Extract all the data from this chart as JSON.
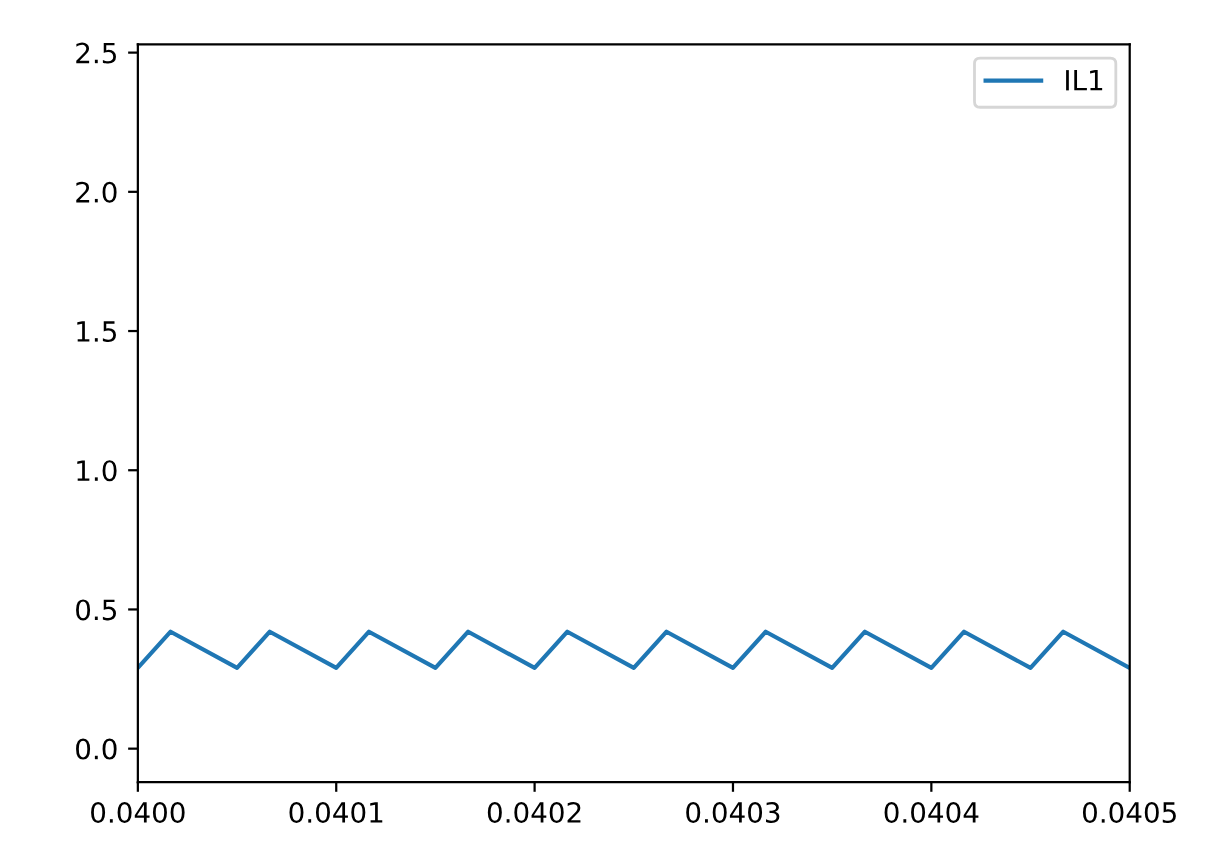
{
  "chart_data": {
    "type": "line",
    "legend": "top right",
    "grid": false,
    "xlim": [
      0.04,
      0.0405
    ],
    "ylim": [
      -0.12,
      2.53
    ],
    "xticks": [
      {
        "value": 0.04,
        "label": "0.0400"
      },
      {
        "value": 0.0401,
        "label": "0.0401"
      },
      {
        "value": 0.0402,
        "label": "0.0402"
      },
      {
        "value": 0.0403,
        "label": "0.0403"
      },
      {
        "value": 0.0404,
        "label": "0.0404"
      },
      {
        "value": 0.0405,
        "label": "0.0405"
      }
    ],
    "yticks": [
      {
        "value": 0,
        "label": "0.0"
      },
      0.5,
      {
        "value": 1,
        "label": "1.0"
      },
      1.5,
      {
        "value": 2,
        "label": "2.0"
      },
      2.5
    ],
    "series": [
      {
        "name": "IL1",
        "color": "#1f77b4",
        "x": [
          0.04,
          0.0400165,
          0.04005,
          0.0400665,
          0.0401,
          0.0401165,
          0.04015,
          0.0401665,
          0.0402,
          0.0402165,
          0.04025,
          0.0402665,
          0.0403,
          0.0403165,
          0.04035,
          0.0403665,
          0.0404,
          0.0404165,
          0.04045,
          0.0404665,
          0.0405
        ],
        "values": [
          0.29,
          0.42,
          0.29,
          0.42,
          0.29,
          0.42,
          0.29,
          0.42,
          0.29,
          0.42,
          0.29,
          0.42,
          0.29,
          0.42,
          0.29,
          0.42,
          0.29,
          0.42,
          0.29,
          0.42,
          0.29
        ]
      }
    ]
  }
}
